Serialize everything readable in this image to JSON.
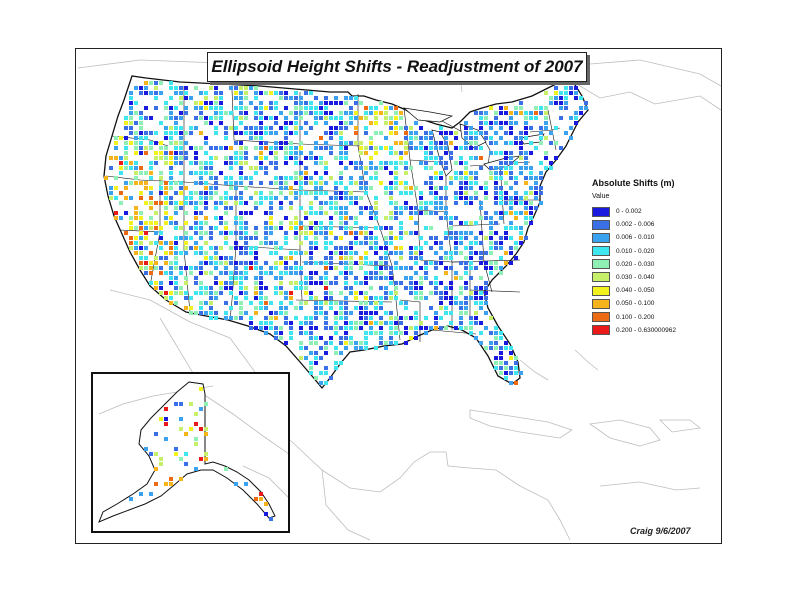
{
  "map": {
    "title": "Ellipsoid Height Shifts - Readjustment of 2007",
    "credit": "Craig 9/6/2007"
  },
  "legend": {
    "title": "Absolute Shifts (m)",
    "subtitle": "Value",
    "classes": [
      {
        "label": "0 - 0.002",
        "color": "#1a1adf"
      },
      {
        "label": "0.002 - 0.006",
        "color": "#3b6fe6"
      },
      {
        "label": "0.006 - 0.010",
        "color": "#3aa2ee"
      },
      {
        "label": "0.010 - 0.020",
        "color": "#3fe6f0"
      },
      {
        "label": "0.020 - 0.030",
        "color": "#8ef0b4"
      },
      {
        "label": "0.030 - 0.040",
        "color": "#c6f06a"
      },
      {
        "label": "0.040 - 0.050",
        "color": "#f2f21e"
      },
      {
        "label": "0.050 - 0.100",
        "color": "#f5b31c"
      },
      {
        "label": "0.100 - 0.200",
        "color": "#ec6a14"
      },
      {
        "label": "0.200 - 0.630000962",
        "color": "#ea1a1a"
      }
    ]
  }
}
